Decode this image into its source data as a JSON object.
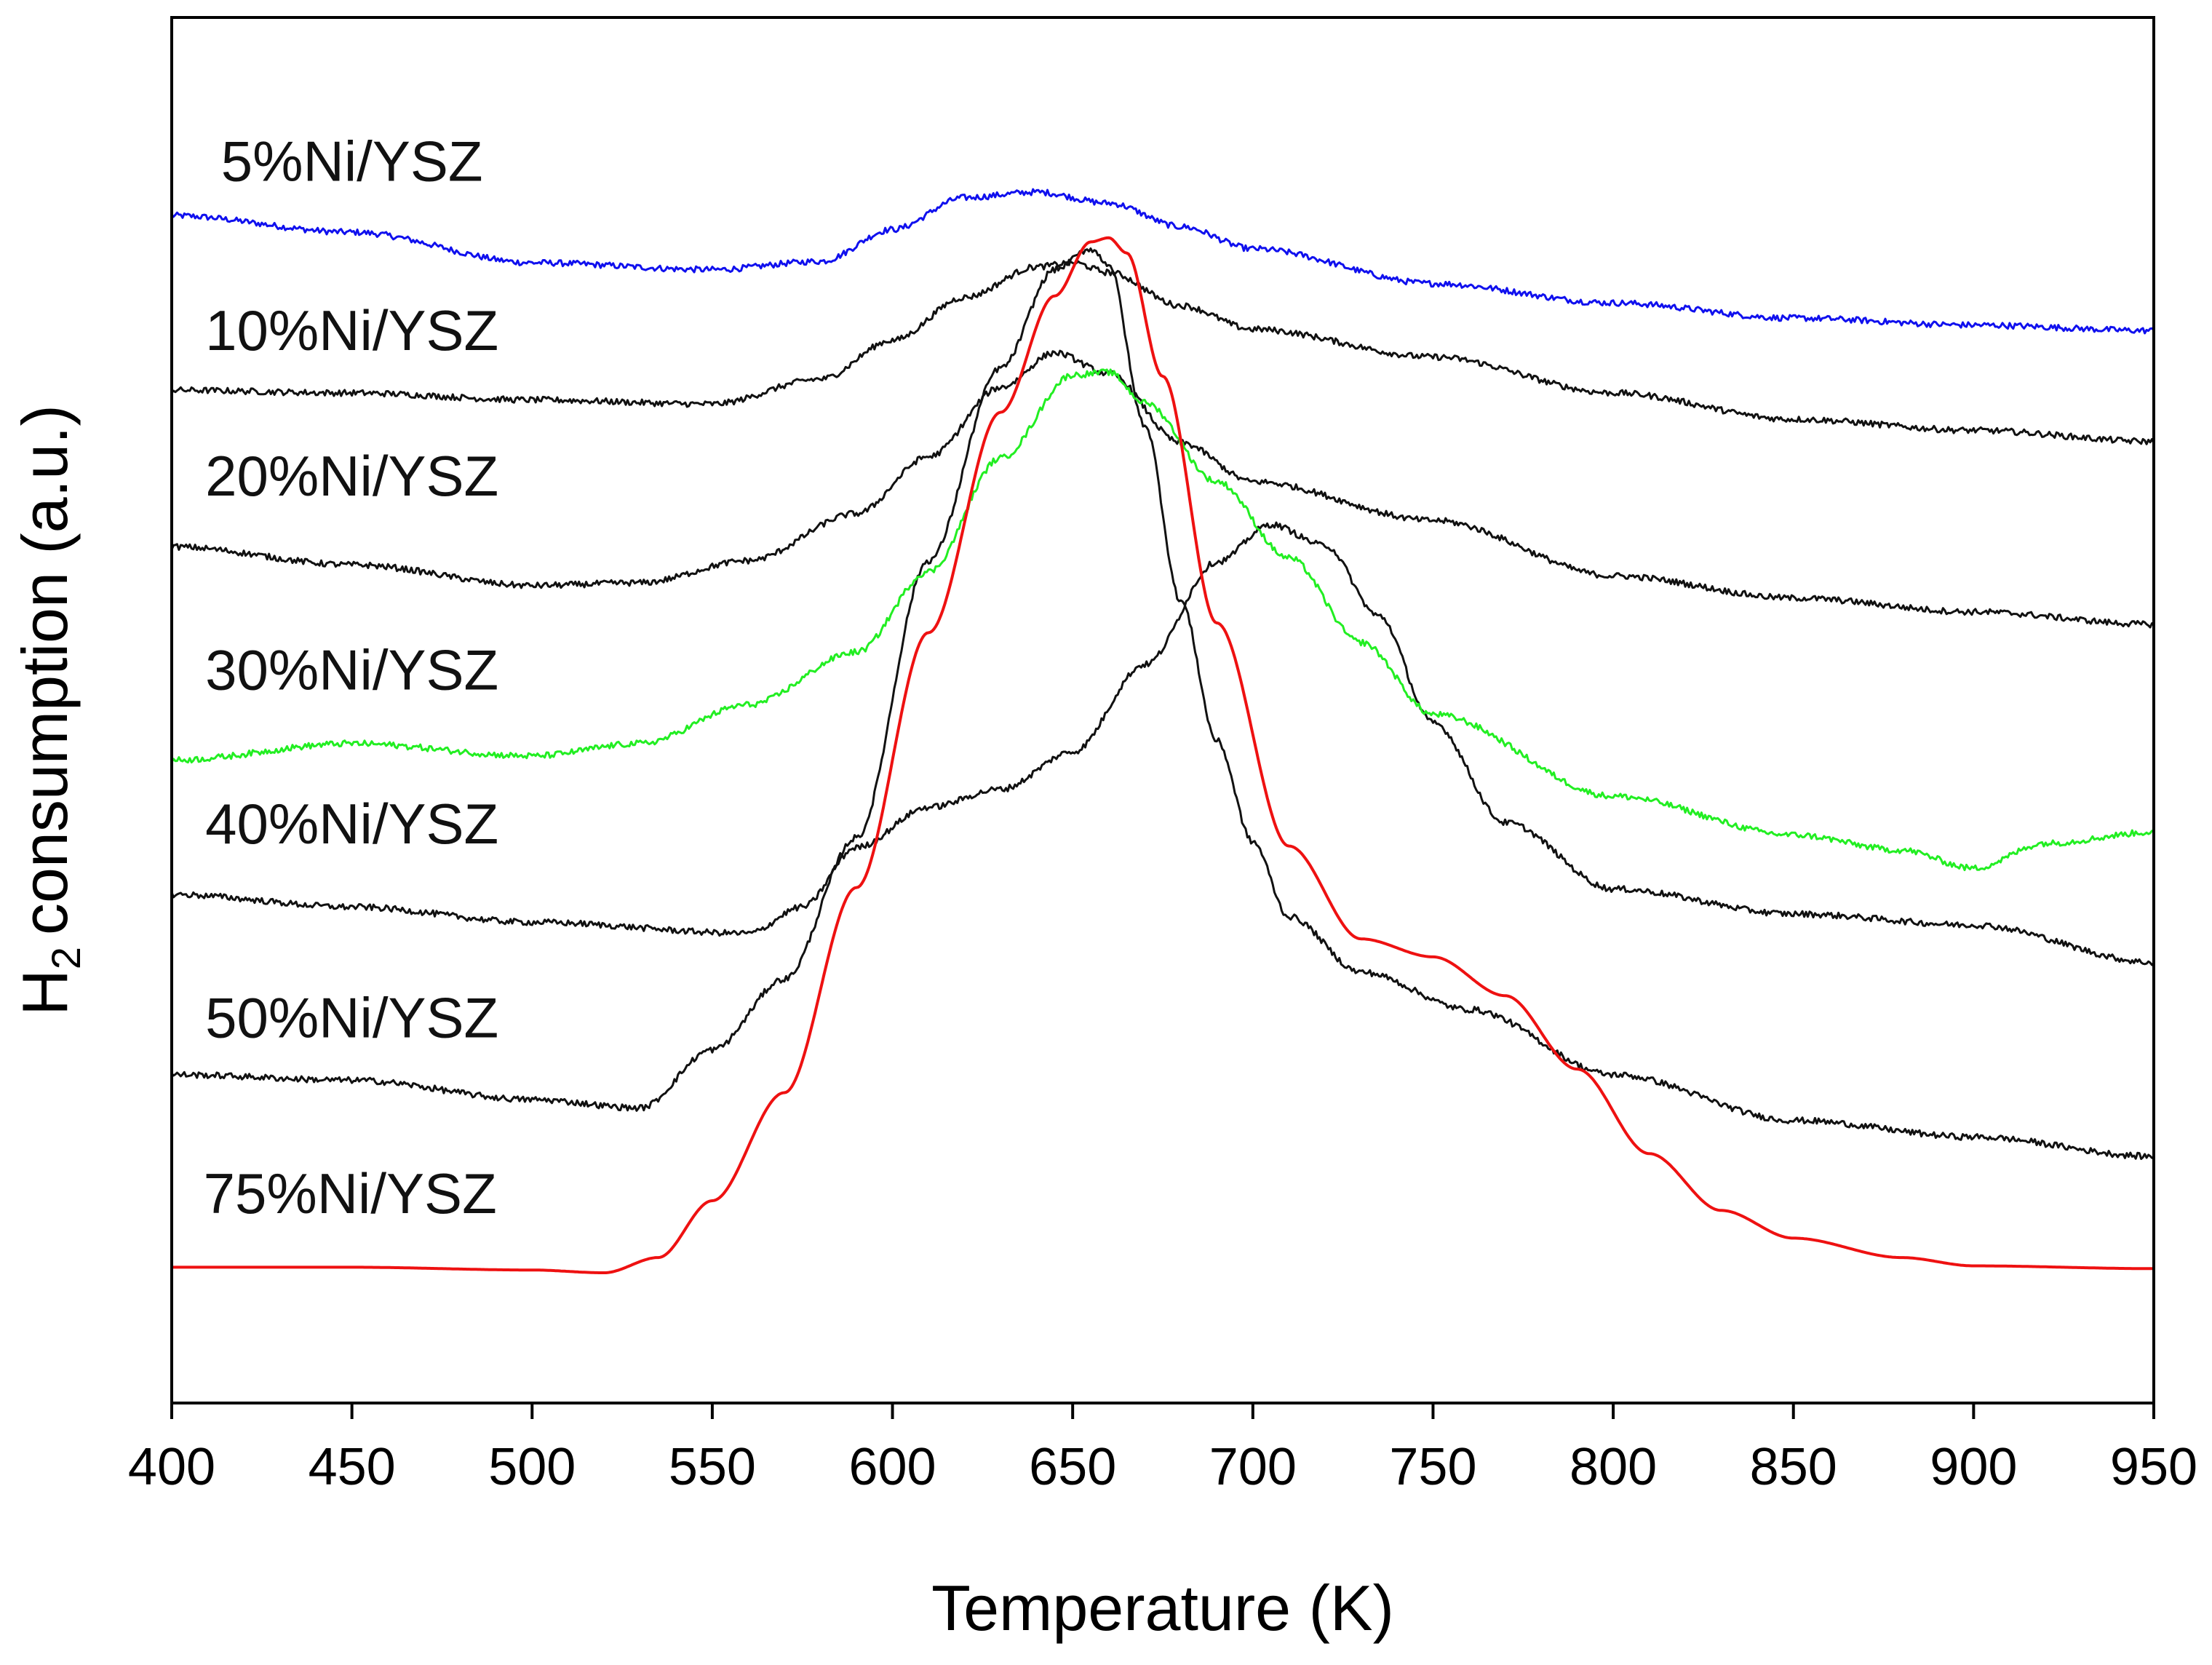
{
  "chart_data": {
    "type": "line",
    "title": "",
    "xlabel": "Temperature (K)",
    "ylabel": "consumption (a.u.)",
    "ylabel_prefix": "H",
    "ylabel_subscript": "2",
    "xlim": [
      400,
      950
    ],
    "ylim": [
      0,
      100
    ],
    "x_ticks": [
      400,
      450,
      500,
      550,
      600,
      650,
      700,
      750,
      800,
      850,
      900,
      950
    ],
    "y_ticks": [],
    "grid": false,
    "series": [
      {
        "name": "5%Ni/YSZ",
        "color": "#1010ee",
        "width": 3,
        "noise": 0.22,
        "x": [
          400,
          450,
          500,
          550,
          580,
          600,
          620,
          640,
          660,
          680,
          700,
          750,
          800,
          850,
          900,
          950
        ],
        "y": [
          85.7,
          84.5,
          82.3,
          81.8,
          82.4,
          84.7,
          87.0,
          87.4,
          86.6,
          84.9,
          83.3,
          80.8,
          79.4,
          78.3,
          77.8,
          77.4
        ]
      },
      {
        "name": "10%Ni/YSZ",
        "color": "#111111",
        "width": 3,
        "noise": 0.22,
        "x": [
          400,
          450,
          500,
          550,
          580,
          600,
          620,
          640,
          650,
          660,
          680,
          700,
          750,
          800,
          850,
          900,
          950
        ],
        "y": [
          73.1,
          72.9,
          72.4,
          72.1,
          73.9,
          76.7,
          79.8,
          82.0,
          82.3,
          81.6,
          79.2,
          77.5,
          75.5,
          72.9,
          71.0,
          70.2,
          69.4
        ]
      },
      {
        "name": "20%Ni/YSZ",
        "color": "#111111",
        "width": 3,
        "noise": 0.22,
        "x": [
          400,
          450,
          500,
          530,
          560,
          590,
          610,
          630,
          645,
          660,
          680,
          700,
          750,
          800,
          850,
          900,
          950
        ],
        "y": [
          61.8,
          60.5,
          59.0,
          59.2,
          60.8,
          64.2,
          68.3,
          73.3,
          75.8,
          74.3,
          69.3,
          66.5,
          63.7,
          59.7,
          58.1,
          57.1,
          56.2
        ]
      },
      {
        "name": "30%Ni/YSZ",
        "color": "#22ee22",
        "width": 3,
        "noise": 0.22,
        "x": [
          400,
          450,
          500,
          530,
          560,
          590,
          610,
          630,
          650,
          660,
          670,
          690,
          710,
          730,
          750,
          800,
          850,
          880,
          900,
          920,
          950
        ],
        "y": [
          46.4,
          47.6,
          46.7,
          47.6,
          50.4,
          54.2,
          60.0,
          68.2,
          74.2,
          74.4,
          72.2,
          66.5,
          61.0,
          54.9,
          49.7,
          43.8,
          41.0,
          39.9,
          38.6,
          40.4,
          41.2
        ]
      },
      {
        "name": "40%Ni/YSZ",
        "color": "#111111",
        "width": 3,
        "noise": 0.22,
        "x": [
          400,
          450,
          500,
          560,
          575,
          590,
          610,
          630,
          650,
          670,
          690,
          705,
          720,
          735,
          750,
          770,
          800,
          850,
          900,
          950
        ],
        "y": [
          36.7,
          35.8,
          34.7,
          33.9,
          35.8,
          40.1,
          43.0,
          44.3,
          47.0,
          53.3,
          60.7,
          63.4,
          61.9,
          56.8,
          49.1,
          41.9,
          37.1,
          35.3,
          34.5,
          31.8
        ]
      },
      {
        "name": "50%Ni/YSZ",
        "color": "#111111",
        "width": 3,
        "noise": 0.22,
        "x": [
          400,
          450,
          500,
          530,
          550,
          570,
          590,
          610,
          630,
          645,
          655,
          660,
          670,
          680,
          690,
          700,
          710,
          730,
          760,
          800,
          850,
          900,
          950
        ],
        "y": [
          23.7,
          23.3,
          21.9,
          21.3,
          25.5,
          30.6,
          40.8,
          60.8,
          74.7,
          81.8,
          83.3,
          82.2,
          70.6,
          57.9,
          47.8,
          40.5,
          35.1,
          31.1,
          28.4,
          23.7,
          20.4,
          19.2,
          17.8
        ]
      },
      {
        "name": "75%Ni/YSZ",
        "color": "#ee1111",
        "width": 4,
        "noise": 0,
        "x": [
          400,
          450,
          500,
          520,
          535,
          550,
          570,
          590,
          610,
          630,
          645,
          655,
          660,
          665,
          675,
          690,
          710,
          730,
          750,
          770,
          790,
          810,
          830,
          850,
          880,
          900,
          950
        ],
        "y": [
          9.8,
          9.8,
          9.6,
          9.4,
          10.5,
          14.6,
          22.4,
          37.2,
          55.6,
          71.5,
          79.9,
          83.8,
          84.1,
          83.0,
          74.1,
          56.3,
          40.2,
          33.5,
          32.2,
          29.4,
          24.1,
          18.0,
          13.9,
          11.9,
          10.5,
          9.9,
          9.7
        ]
      }
    ],
    "annotations": [
      {
        "text": "5%Ni/YSZ",
        "x": 450,
        "y": 88.2
      },
      {
        "text": "10%Ni/YSZ",
        "x": 450,
        "y": 76.0
      },
      {
        "text": "20%Ni/YSZ",
        "x": 450,
        "y": 65.5
      },
      {
        "text": "30%Ni/YSZ",
        "x": 450,
        "y": 51.5
      },
      {
        "text": "40%Ni/YSZ",
        "x": 450,
        "y": 40.4
      },
      {
        "text": "50%Ni/YSZ",
        "x": 450,
        "y": 26.4
      },
      {
        "text": "75%Ni/YSZ",
        "x": 449.5,
        "y": 13.7
      }
    ]
  }
}
